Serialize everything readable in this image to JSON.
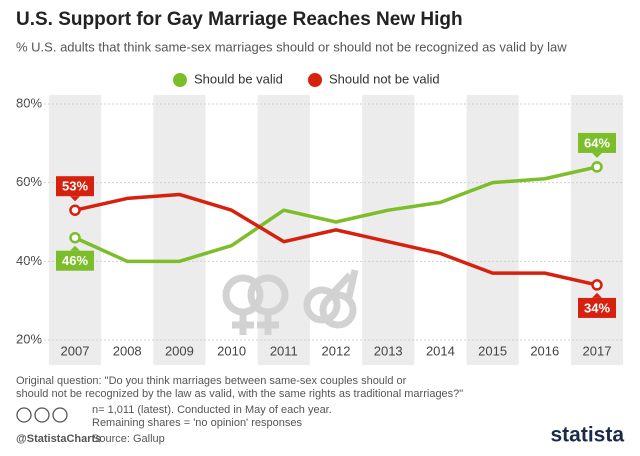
{
  "chart_data": {
    "type": "line",
    "title": "U.S. Support for Gay Marriage Reaches New High",
    "subtitle": "% U.S. adults that think same-sex marriages should or should not be recognized as valid by law",
    "categories": [
      "2007",
      "2008",
      "2009",
      "2010",
      "2011",
      "2012",
      "2013",
      "2014",
      "2015",
      "2016",
      "2017"
    ],
    "series": [
      {
        "name": "Should be valid",
        "color": "#7cbd2a",
        "values": [
          46,
          40,
          40,
          44,
          53,
          50,
          53,
          55,
          60,
          61,
          64
        ],
        "value_labels": [
          "46%",
          null,
          null,
          null,
          null,
          null,
          null,
          null,
          null,
          null,
          "64%"
        ]
      },
      {
        "name": "Should not be valid",
        "color": "#d7210f",
        "values": [
          53,
          56,
          57,
          53,
          45,
          48,
          45,
          42,
          37,
          37,
          34
        ],
        "value_labels": [
          "53%",
          null,
          null,
          null,
          null,
          null,
          null,
          null,
          null,
          null,
          "34%"
        ]
      }
    ],
    "ylim": [
      20,
      80
    ],
    "yticks": [
      {
        "value": 20,
        "label": "20%"
      },
      {
        "value": 40,
        "label": "40%"
      },
      {
        "value": 60,
        "label": "60%"
      },
      {
        "value": 80,
        "label": "80%"
      }
    ],
    "grid": true
  },
  "footer": {
    "notes": [
      "Original question: \"Do you think marriages between same-sex couples should or",
      "should not be recognized by the law as valid, with the same rights as traditional marriages?\""
    ],
    "details": [
      "n= 1,011 (latest). Conducted in May of each year.",
      "Remaining shares = 'no opinion' responses"
    ],
    "source": "Source: Gallup",
    "handle": "@StatistaCharts",
    "logo": "statista"
  }
}
